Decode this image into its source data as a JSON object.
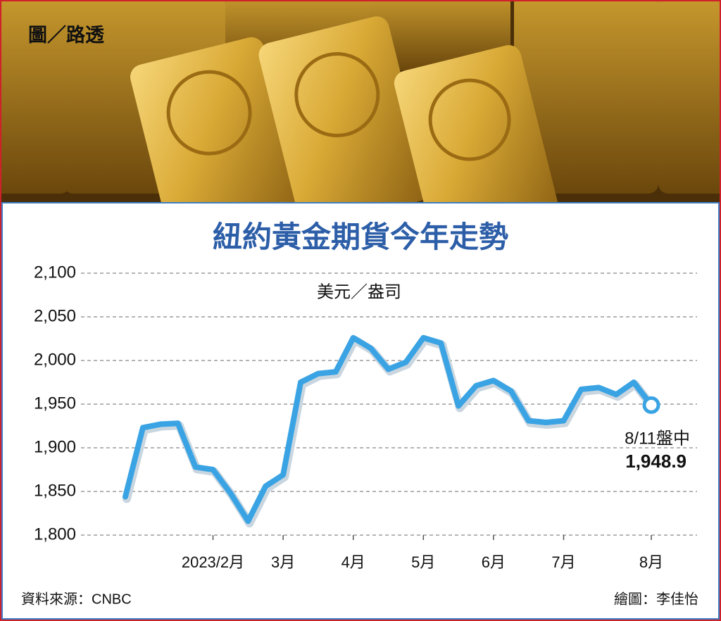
{
  "chart_data": {
    "type": "line",
    "photo_credit": "圖／路透",
    "title": "紐約黃金期貨今年走勢",
    "y_label": "美元／盎司",
    "categories": [
      null,
      null,
      null,
      null,
      null,
      "2023/2月",
      null,
      null,
      null,
      "3月",
      null,
      null,
      null,
      "4月",
      null,
      null,
      null,
      "5月",
      null,
      null,
      null,
      "6月",
      null,
      null,
      null,
      "7月",
      null,
      null,
      null,
      null,
      "8月"
    ],
    "values": [
      1844,
      1923,
      1927,
      1928,
      1878,
      1875,
      1848,
      1816,
      1856,
      1869,
      1975,
      1985,
      1987,
      2026,
      2014,
      1990,
      1998,
      2026,
      2020,
      1948,
      1971,
      1977,
      1965,
      1931,
      1929,
      1931,
      1967,
      1969,
      1961,
      1975,
      1948.9
    ],
    "value_labels": [
      null,
      null,
      null,
      null,
      null,
      null,
      null,
      null,
      null,
      null,
      null,
      null,
      null,
      null,
      null,
      null,
      null,
      null,
      null,
      null,
      null,
      null,
      null,
      null,
      null,
      null,
      null,
      null,
      null,
      null,
      "1,948.9"
    ],
    "annotation": "8/11盤中",
    "color": "#3aa3e3",
    "ylim": [
      1800,
      2100
    ],
    "yticks": [
      {
        "value": 1800,
        "label": "1,800"
      },
      {
        "value": 1850,
        "label": "1,850"
      },
      {
        "value": 1900,
        "label": "1,900"
      },
      {
        "value": 1950,
        "label": "1,950"
      },
      {
        "value": 2000,
        "label": "2,000"
      },
      {
        "value": 2050,
        "label": "2,050"
      },
      {
        "value": 2100,
        "label": "2,100"
      }
    ],
    "grid": true,
    "source": "資料來源：CNBC",
    "credit": "繪圖：李佳怡"
  }
}
